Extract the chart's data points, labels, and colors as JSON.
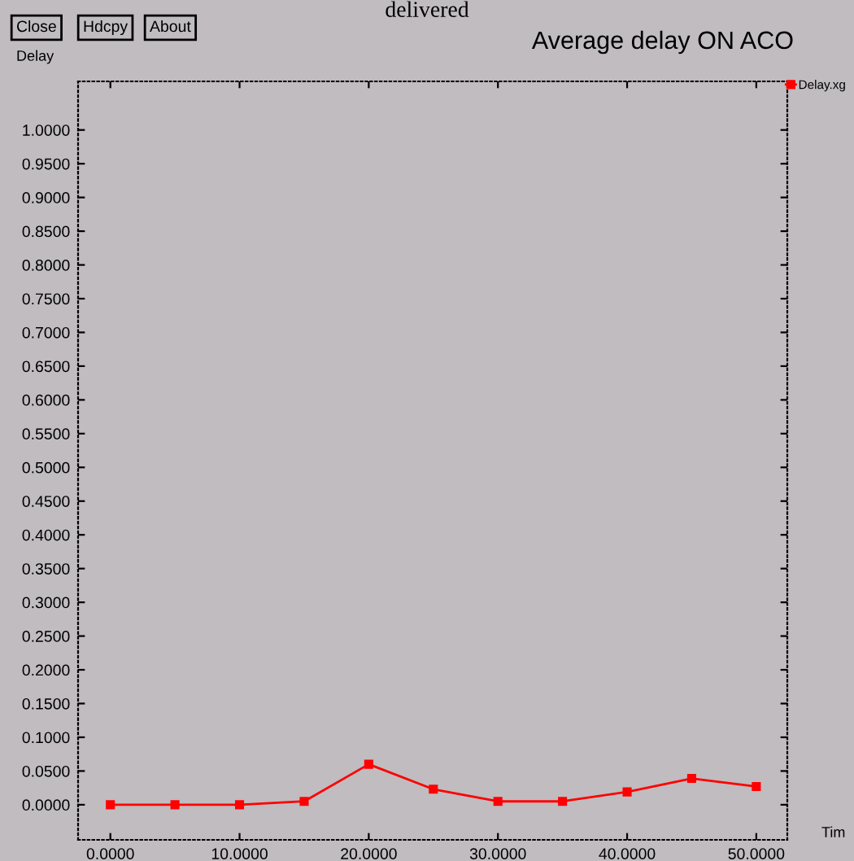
{
  "chart_data": {
    "type": "line",
    "title": "Average delay ON ACO",
    "xlabel": "Tim",
    "ylabel": "Delay",
    "annotations": [
      "delivered",
      "Close",
      "Hdcpy",
      "About"
    ],
    "x": [
      0,
      5,
      10,
      15,
      20,
      25,
      30,
      35,
      40,
      45,
      50
    ],
    "series": [
      {
        "name": "Delay.xg",
        "color": "#ff0000",
        "values": [
          0,
          0,
          0,
          0.005,
          0.06,
          0.023,
          0.005,
          0.005,
          0.019,
          0.039,
          0.027
        ]
      }
    ],
    "xlim": [
      -2.5,
      52.4
    ],
    "ylim": [
      -0.052,
      1.072
    ],
    "xticks": [
      {
        "value": 0,
        "label": "0.0000"
      },
      {
        "value": 10,
        "label": "10.0000"
      },
      {
        "value": 20,
        "label": "20.0000"
      },
      {
        "value": 30,
        "label": "30.0000"
      },
      {
        "value": 40,
        "label": "40.0000"
      },
      {
        "value": 50,
        "label": "50.0000"
      }
    ],
    "yticks": [
      {
        "value": 0,
        "label": "0.0000"
      },
      {
        "value": 0.05,
        "label": "0.0500"
      },
      {
        "value": 0.1,
        "label": "0.1000"
      },
      {
        "value": 0.15,
        "label": "0.1500"
      },
      {
        "value": 0.2,
        "label": "0.2000"
      },
      {
        "value": 0.25,
        "label": "0.2500"
      },
      {
        "value": 0.3,
        "label": "0.3000"
      },
      {
        "value": 0.35,
        "label": "0.3500"
      },
      {
        "value": 0.4,
        "label": "0.4000"
      },
      {
        "value": 0.45,
        "label": "0.4500"
      },
      {
        "value": 0.5,
        "label": "0.5000"
      },
      {
        "value": 0.55,
        "label": "0.5500"
      },
      {
        "value": 0.6,
        "label": "0.6000"
      },
      {
        "value": 0.65,
        "label": "0.6500"
      },
      {
        "value": 0.7,
        "label": "0.7000"
      },
      {
        "value": 0.75,
        "label": "0.7500"
      },
      {
        "value": 0.8,
        "label": "0.8000"
      },
      {
        "value": 0.85,
        "label": "0.8500"
      },
      {
        "value": 0.9,
        "label": "0.9000"
      },
      {
        "value": 0.95,
        "label": "0.9500"
      },
      {
        "value": 1,
        "label": "1.0000"
      }
    ],
    "grid": false,
    "legend": "top right",
    "marker": "square",
    "line_style": "solid"
  }
}
